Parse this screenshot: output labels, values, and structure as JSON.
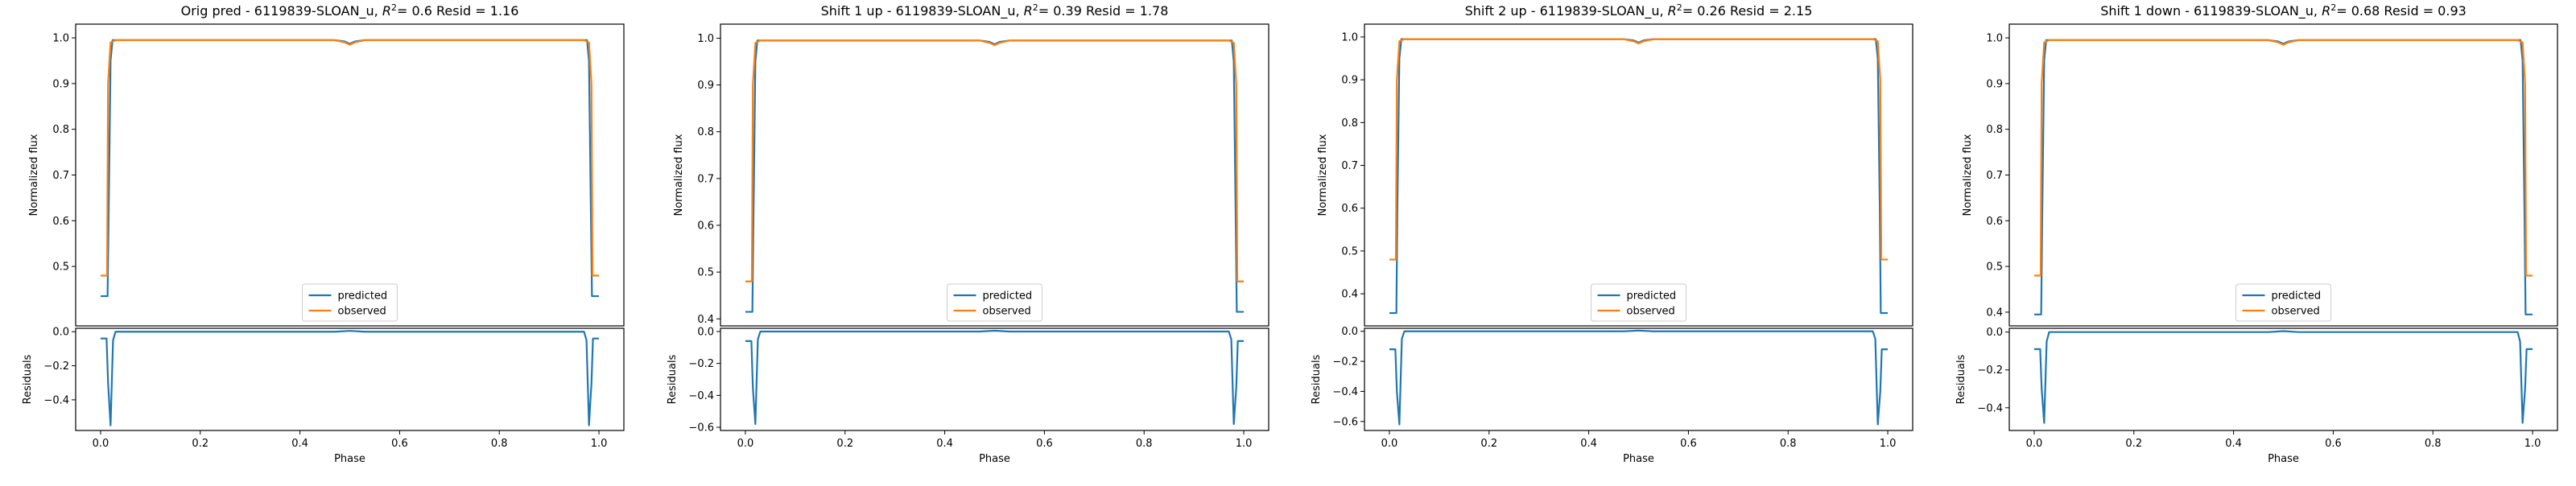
{
  "figure": {
    "legend_predicted": "predicted",
    "legend_observed": "observed",
    "ylabel_top": "Normalized flux",
    "ylabel_bottom": "Residuals",
    "xlabel": "Phase",
    "colors": {
      "predicted": "#1f77b4",
      "observed": "#ff7f0e"
    }
  },
  "chart_data": [
    {
      "type": "line",
      "title_prefix": "Orig pred - 6119839-SLOAN_u, ",
      "title_r2": "= 0.6 Resid = 1.16",
      "xlim": [
        -0.05,
        1.05
      ],
      "xticks": [
        0.0,
        0.2,
        0.4,
        0.6,
        0.8,
        1.0
      ],
      "xtick_labels": [
        "0.0",
        "0.2",
        "0.4",
        "0.6",
        "0.8",
        "1.0"
      ],
      "top": {
        "ylim": [
          0.37,
          1.03
        ],
        "yticks": [
          0.5,
          0.6,
          0.7,
          0.8,
          0.9,
          1.0
        ],
        "ytick_labels": [
          "0.5",
          "0.6",
          "0.7",
          "0.8",
          "0.9",
          "1.0"
        ],
        "series": [
          {
            "name": "predicted",
            "x": [
              0.0,
              0.014,
              0.016,
              0.02,
              0.024,
              0.03,
              0.47,
              0.49,
              0.5,
              0.51,
              0.53,
              0.97,
              0.976,
              0.98,
              0.984,
              0.986,
              1.0
            ],
            "y": [
              0.435,
              0.435,
              0.6,
              0.95,
              0.995,
              0.995,
              0.995,
              0.992,
              0.987,
              0.992,
              0.995,
              0.995,
              0.995,
              0.95,
              0.6,
              0.435,
              0.435
            ]
          },
          {
            "name": "observed",
            "x": [
              0.0,
              0.013,
              0.015,
              0.02,
              0.03,
              0.47,
              0.49,
              0.5,
              0.51,
              0.53,
              0.97,
              0.98,
              0.985,
              0.987,
              1.0
            ],
            "y": [
              0.48,
              0.48,
              0.9,
              0.99,
              0.995,
              0.995,
              0.99,
              0.985,
              0.99,
              0.995,
              0.995,
              0.99,
              0.9,
              0.48,
              0.48
            ]
          }
        ]
      },
      "bottom": {
        "ylim": [
          -0.58,
          0.02
        ],
        "yticks": [
          -0.4,
          -0.2,
          0.0
        ],
        "ytick_labels": [
          "−0.4",
          "−0.2",
          "0.0"
        ],
        "series": [
          {
            "name": "residuals",
            "x": [
              0.0,
              0.012,
              0.015,
              0.02,
              0.025,
              0.03,
              0.47,
              0.5,
              0.53,
              0.97,
              0.975,
              0.98,
              0.985,
              0.988,
              1.0
            ],
            "y": [
              -0.04,
              -0.04,
              -0.3,
              -0.55,
              -0.05,
              0.0,
              0.0,
              0.005,
              0.0,
              0.0,
              -0.05,
              -0.55,
              -0.3,
              -0.04,
              -0.04
            ]
          }
        ]
      }
    },
    {
      "type": "line",
      "title_prefix": "Shift 1 up - 6119839-SLOAN_u, ",
      "title_r2": "= 0.39 Resid = 1.78",
      "xlim": [
        -0.05,
        1.05
      ],
      "xticks": [
        0.0,
        0.2,
        0.4,
        0.6,
        0.8,
        1.0
      ],
      "xtick_labels": [
        "0.0",
        "0.2",
        "0.4",
        "0.6",
        "0.8",
        "1.0"
      ],
      "top": {
        "ylim": [
          0.385,
          1.03
        ],
        "yticks": [
          0.4,
          0.5,
          0.6,
          0.7,
          0.8,
          0.9,
          1.0
        ],
        "ytick_labels": [
          "0.4",
          "0.5",
          "0.6",
          "0.7",
          "0.8",
          "0.9",
          "1.0"
        ],
        "series": [
          {
            "name": "predicted",
            "x": [
              0.0,
              0.014,
              0.016,
              0.02,
              0.024,
              0.03,
              0.47,
              0.49,
              0.5,
              0.51,
              0.53,
              0.97,
              0.976,
              0.98,
              0.984,
              0.986,
              1.0
            ],
            "y": [
              0.415,
              0.415,
              0.6,
              0.95,
              0.995,
              0.995,
              0.995,
              0.992,
              0.987,
              0.992,
              0.995,
              0.995,
              0.995,
              0.95,
              0.6,
              0.415,
              0.415
            ]
          },
          {
            "name": "observed",
            "x": [
              0.0,
              0.013,
              0.015,
              0.02,
              0.03,
              0.47,
              0.49,
              0.5,
              0.51,
              0.53,
              0.97,
              0.98,
              0.985,
              0.987,
              1.0
            ],
            "y": [
              0.48,
              0.48,
              0.9,
              0.99,
              0.995,
              0.995,
              0.99,
              0.985,
              0.99,
              0.995,
              0.995,
              0.99,
              0.9,
              0.48,
              0.48
            ]
          }
        ]
      },
      "bottom": {
        "ylim": [
          -0.62,
          0.02
        ],
        "yticks": [
          -0.6,
          -0.4,
          -0.2,
          0.0
        ],
        "ytick_labels": [
          "−0.6",
          "−0.4",
          "−0.2",
          "0.0"
        ],
        "series": [
          {
            "name": "residuals",
            "x": [
              0.0,
              0.012,
              0.015,
              0.02,
              0.025,
              0.03,
              0.47,
              0.5,
              0.53,
              0.97,
              0.975,
              0.98,
              0.985,
              0.988,
              1.0
            ],
            "y": [
              -0.06,
              -0.06,
              -0.35,
              -0.58,
              -0.05,
              0.0,
              0.0,
              0.005,
              0.0,
              0.0,
              -0.05,
              -0.58,
              -0.35,
              -0.06,
              -0.06
            ]
          }
        ]
      }
    },
    {
      "type": "line",
      "title_prefix": "Shift 2 up - 6119839-SLOAN_u, ",
      "title_r2": "= 0.26 Resid = 2.15",
      "xlim": [
        -0.05,
        1.05
      ],
      "xticks": [
        0.0,
        0.2,
        0.4,
        0.6,
        0.8,
        1.0
      ],
      "xtick_labels": [
        "0.0",
        "0.2",
        "0.4",
        "0.6",
        "0.8",
        "1.0"
      ],
      "top": {
        "ylim": [
          0.325,
          1.03
        ],
        "yticks": [
          0.4,
          0.5,
          0.6,
          0.7,
          0.8,
          0.9,
          1.0
        ],
        "ytick_labels": [
          "0.4",
          "0.5",
          "0.6",
          "0.7",
          "0.8",
          "0.9",
          "1.0"
        ],
        "series": [
          {
            "name": "predicted",
            "x": [
              0.0,
              0.014,
              0.016,
              0.02,
              0.024,
              0.03,
              0.47,
              0.49,
              0.5,
              0.51,
              0.53,
              0.97,
              0.976,
              0.98,
              0.984,
              0.986,
              1.0
            ],
            "y": [
              0.355,
              0.355,
              0.6,
              0.95,
              0.995,
              0.995,
              0.995,
              0.992,
              0.987,
              0.992,
              0.995,
              0.995,
              0.995,
              0.95,
              0.6,
              0.355,
              0.355
            ]
          },
          {
            "name": "observed",
            "x": [
              0.0,
              0.013,
              0.015,
              0.02,
              0.03,
              0.47,
              0.49,
              0.5,
              0.51,
              0.53,
              0.97,
              0.98,
              0.985,
              0.987,
              1.0
            ],
            "y": [
              0.48,
              0.48,
              0.9,
              0.99,
              0.995,
              0.995,
              0.99,
              0.985,
              0.99,
              0.995,
              0.995,
              0.99,
              0.9,
              0.48,
              0.48
            ]
          }
        ]
      },
      "bottom": {
        "ylim": [
          -0.66,
          0.02
        ],
        "yticks": [
          -0.6,
          -0.4,
          -0.2,
          0.0
        ],
        "ytick_labels": [
          "−0.6",
          "−0.4",
          "−0.2",
          "0.0"
        ],
        "series": [
          {
            "name": "residuals",
            "x": [
              0.0,
              0.012,
              0.015,
              0.02,
              0.025,
              0.03,
              0.47,
              0.5,
              0.53,
              0.97,
              0.975,
              0.98,
              0.985,
              0.988,
              1.0
            ],
            "y": [
              -0.12,
              -0.12,
              -0.4,
              -0.62,
              -0.05,
              0.0,
              0.0,
              0.005,
              0.0,
              0.0,
              -0.05,
              -0.62,
              -0.4,
              -0.12,
              -0.12
            ]
          }
        ]
      }
    },
    {
      "type": "line",
      "title_prefix": "Shift 1 down - 6119839-SLOAN_u, ",
      "title_r2": "= 0.68 Resid = 0.93",
      "xlim": [
        -0.05,
        1.05
      ],
      "xticks": [
        0.0,
        0.2,
        0.4,
        0.6,
        0.8,
        1.0
      ],
      "xtick_labels": [
        "0.0",
        "0.2",
        "0.4",
        "0.6",
        "0.8",
        "1.0"
      ],
      "top": {
        "ylim": [
          0.37,
          1.03
        ],
        "yticks": [
          0.4,
          0.5,
          0.6,
          0.7,
          0.8,
          0.9,
          1.0
        ],
        "ytick_labels": [
          "0.4",
          "0.5",
          "0.6",
          "0.7",
          "0.8",
          "0.9",
          "1.0"
        ],
        "series": [
          {
            "name": "predicted",
            "x": [
              0.0,
              0.014,
              0.016,
              0.02,
              0.024,
              0.03,
              0.47,
              0.49,
              0.5,
              0.51,
              0.53,
              0.97,
              0.976,
              0.98,
              0.984,
              0.986,
              1.0
            ],
            "y": [
              0.395,
              0.395,
              0.6,
              0.95,
              0.995,
              0.995,
              0.995,
              0.992,
              0.987,
              0.992,
              0.995,
              0.995,
              0.995,
              0.95,
              0.6,
              0.395,
              0.395
            ]
          },
          {
            "name": "observed",
            "x": [
              0.0,
              0.013,
              0.015,
              0.02,
              0.03,
              0.47,
              0.49,
              0.5,
              0.51,
              0.53,
              0.97,
              0.98,
              0.985,
              0.987,
              1.0
            ],
            "y": [
              0.48,
              0.48,
              0.9,
              0.99,
              0.995,
              0.995,
              0.99,
              0.985,
              0.99,
              0.995,
              0.995,
              0.99,
              0.9,
              0.48,
              0.48
            ]
          }
        ]
      },
      "bottom": {
        "ylim": [
          -0.52,
          0.02
        ],
        "yticks": [
          -0.4,
          -0.2,
          0.0
        ],
        "ytick_labels": [
          "−0.4",
          "−0.2",
          "0.0"
        ],
        "series": [
          {
            "name": "residuals",
            "x": [
              0.0,
              0.012,
              0.015,
              0.02,
              0.025,
              0.03,
              0.47,
              0.5,
              0.53,
              0.97,
              0.975,
              0.98,
              0.985,
              0.988,
              1.0
            ],
            "y": [
              -0.09,
              -0.09,
              -0.3,
              -0.48,
              -0.05,
              0.0,
              0.0,
              0.005,
              0.0,
              0.0,
              -0.05,
              -0.48,
              -0.3,
              -0.09,
              -0.09
            ]
          }
        ]
      }
    }
  ]
}
